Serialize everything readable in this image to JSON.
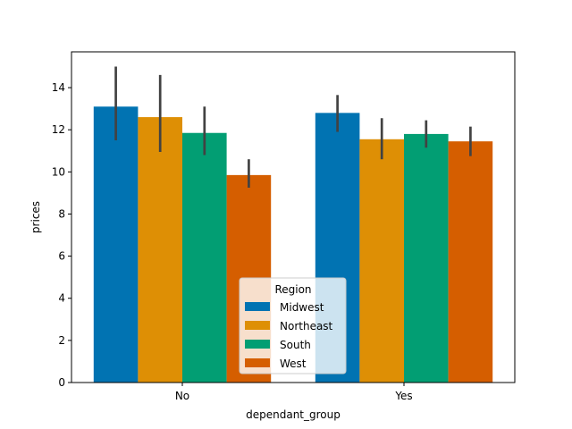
{
  "chart_data": {
    "type": "bar",
    "xlabel": "dependant_group",
    "ylabel": "prices",
    "categories": [
      "No",
      "Yes"
    ],
    "ylim": [
      0,
      15.7
    ],
    "yticks": [
      0,
      2,
      4,
      6,
      8,
      10,
      12,
      14
    ],
    "legend": {
      "title": "Region",
      "placement": "lower-center"
    },
    "series": [
      {
        "name": "Midwest",
        "color": "#0173b2",
        "values": [
          13.1,
          12.8
        ],
        "error_low": [
          11.5,
          11.9
        ],
        "error_high": [
          15.0,
          13.65
        ]
      },
      {
        "name": "Northeast",
        "color": "#de8f05",
        "values": [
          12.6,
          11.55
        ],
        "error_low": [
          10.95,
          10.6
        ],
        "error_high": [
          14.6,
          12.55
        ]
      },
      {
        "name": "South",
        "color": "#029e73",
        "values": [
          11.85,
          11.8
        ],
        "error_low": [
          10.8,
          11.15
        ],
        "error_high": [
          13.1,
          12.45
        ]
      },
      {
        "name": "West",
        "color": "#d55e00",
        "values": [
          9.85,
          11.45
        ],
        "error_low": [
          9.25,
          10.75
        ],
        "error_high": [
          10.6,
          12.15
        ]
      }
    ],
    "grid": false
  }
}
